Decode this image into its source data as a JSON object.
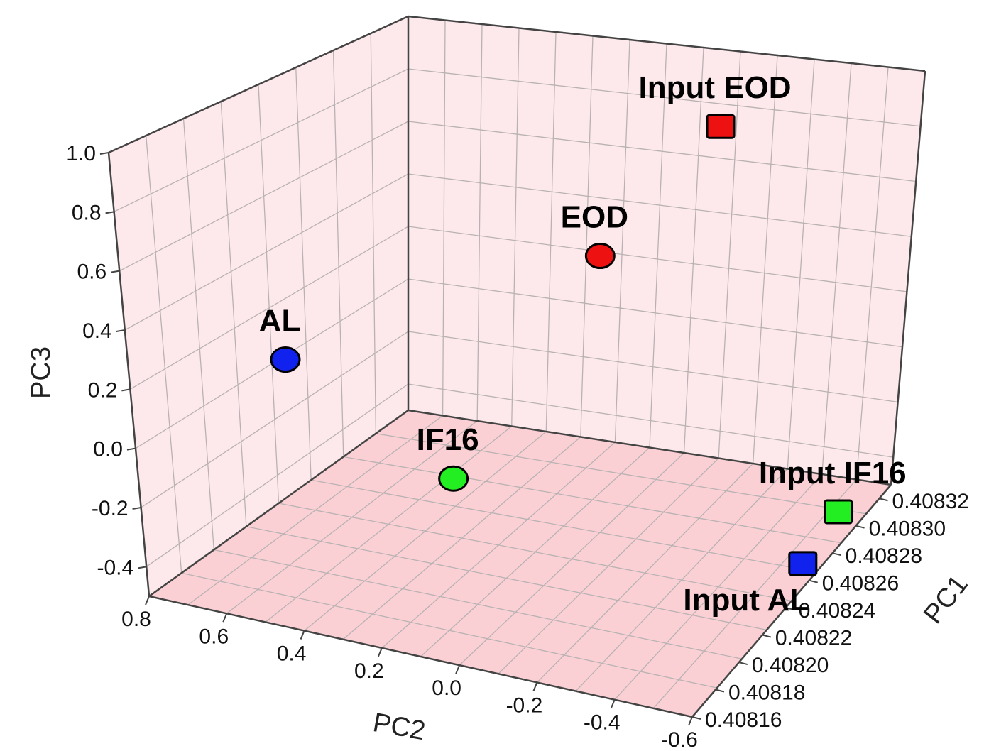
{
  "chart_data": {
    "type": "scatter",
    "projection": "3d",
    "title": "",
    "xlabel": "PC1",
    "ylabel": "PC2",
    "zlabel": "PC3",
    "x_ticks": [
      "0.40816",
      "0.40818",
      "0.40820",
      "0.40822",
      "0.40824",
      "0.40826",
      "0.40828",
      "0.40830",
      "0.40832"
    ],
    "y_ticks": [
      "0.8",
      "0.6",
      "0.4",
      "0.2",
      "0.0",
      "-0.2",
      "-0.4",
      "-0.6"
    ],
    "z_ticks": [
      "1.0",
      "0.8",
      "0.6",
      "0.4",
      "0.2",
      "0.0",
      "-0.2",
      "-0.4"
    ],
    "xlim": [
      0.40816,
      0.40833
    ],
    "ylim": [
      -0.6,
      0.8
    ],
    "zlim": [
      -0.5,
      1.0
    ],
    "grid": true,
    "background_colors": {
      "walls": "#fde9ec",
      "floor": "#fad0d5"
    },
    "points": [
      {
        "label": "Input EOD",
        "pc1": 0.40831,
        "pc2": -0.18,
        "pc3": 0.83,
        "marker": "square",
        "color": "#ee1111"
      },
      {
        "label": "EOD",
        "pc1": 0.40828,
        "pc2": 0.05,
        "pc3": 0.45,
        "marker": "circle",
        "color": "#ee1111"
      },
      {
        "label": "IF16",
        "pc1": 0.40817,
        "pc2": 0.05,
        "pc3": 0.13,
        "marker": "circle",
        "color": "#22ee22"
      },
      {
        "label": "AL",
        "pc1": 0.40823,
        "pc2": 0.72,
        "pc3": 0.13,
        "marker": "circle",
        "color": "#1122ee"
      },
      {
        "label": "Input IF16",
        "pc1": 0.4083,
        "pc2": -0.55,
        "pc3": -0.46,
        "marker": "square",
        "color": "#22ee22"
      },
      {
        "label": "Input AL",
        "pc1": 0.40827,
        "pc2": -0.55,
        "pc3": -0.5,
        "marker": "square",
        "color": "#1122ee"
      }
    ]
  }
}
